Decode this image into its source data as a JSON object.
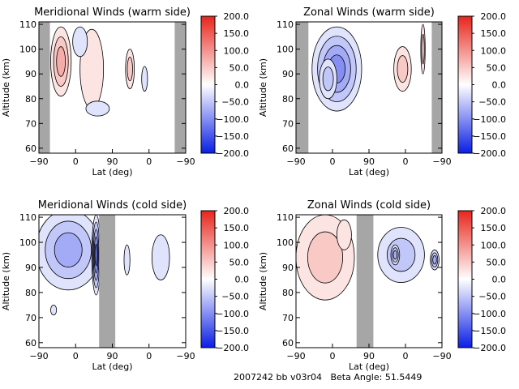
{
  "footer": "2007242 bb v03r04   Beta Angle: 51.5449",
  "colorbar": {
    "ticks": [
      "200.0",
      "150.0",
      "100.0",
      "50.0",
      "0.0",
      "−50.0",
      "−100.0",
      "−150.0",
      "−200.0"
    ],
    "range": [
      -200,
      200
    ],
    "colors": {
      "max": "#e8251c",
      "mid": "#ffffff",
      "min": "#0a1ee6"
    }
  },
  "chart_data": [
    {
      "type": "heatmap",
      "title": "Meridional Winds (warm side)",
      "xlabel": "Lat (deg)",
      "ylabel": "Altitude (km)",
      "xticks": [
        "−90",
        "0",
        "90",
        "0",
        "−90"
      ],
      "yticks": [
        "60",
        "70",
        "80",
        "90",
        "100",
        "110"
      ],
      "ylim": [
        58,
        111
      ],
      "gray_bands": [
        [
          0,
          0.075
        ],
        [
          0.925,
          1
        ]
      ],
      "blobs": [
        {
          "x": 0.15,
          "y": 95,
          "rx": 0.07,
          "ry": 14,
          "v": 75
        },
        {
          "x": 0.36,
          "y": 92,
          "rx": 0.08,
          "ry": 16,
          "v": 25
        },
        {
          "x": 0.28,
          "y": 103,
          "rx": 0.05,
          "ry": 6,
          "v": -30
        },
        {
          "x": 0.4,
          "y": 76,
          "rx": 0.08,
          "ry": 3,
          "v": -25
        },
        {
          "x": 0.62,
          "y": 92,
          "rx": 0.03,
          "ry": 8,
          "v": 60
        },
        {
          "x": 0.72,
          "y": 88,
          "rx": 0.02,
          "ry": 5,
          "v": -25
        }
      ]
    },
    {
      "type": "heatmap",
      "title": "Zonal Winds (warm side)",
      "xlabel": "Lat (deg)",
      "ylabel": "Altitude (km)",
      "xticks": [
        "−90",
        "0",
        "90",
        "0",
        "−90"
      ],
      "yticks": [
        "60",
        "70",
        "80",
        "90",
        "100",
        "110"
      ],
      "ylim": [
        58,
        111
      ],
      "gray_bands": [
        [
          0,
          0.085
        ],
        [
          0.93,
          1
        ]
      ],
      "blobs": [
        {
          "x": 0.28,
          "y": 92,
          "rx": 0.17,
          "ry": 17,
          "v": -110
        },
        {
          "x": 0.22,
          "y": 88,
          "rx": 0.06,
          "ry": 8,
          "v": -60
        },
        {
          "x": 0.73,
          "y": 92,
          "rx": 0.06,
          "ry": 9,
          "v": 70
        },
        {
          "x": 0.87,
          "y": 100,
          "rx": 0.015,
          "ry": 10,
          "v": 60
        }
      ]
    },
    {
      "type": "heatmap",
      "title": "Meridional Winds (cold side)",
      "xlabel": "Lat (deg)",
      "ylabel": "Altitude (km)",
      "xticks": [
        "−90",
        "0",
        "90",
        "0",
        "−90"
      ],
      "yticks": [
        "60",
        "70",
        "80",
        "90",
        "100",
        "110"
      ],
      "ylim": [
        58,
        111
      ],
      "gray_bands": [
        [
          0.41,
          0.52
        ]
      ],
      "blobs": [
        {
          "x": 0.2,
          "y": 97,
          "rx": 0.22,
          "ry": 16,
          "v": -85
        },
        {
          "x": 0.39,
          "y": 95,
          "rx": 0.03,
          "ry": 16,
          "v": -130
        },
        {
          "x": 0.6,
          "y": 93,
          "rx": 0.02,
          "ry": 6,
          "v": -25
        },
        {
          "x": 0.83,
          "y": 94,
          "rx": 0.06,
          "ry": 9,
          "v": -45
        },
        {
          "x": 0.1,
          "y": 73,
          "rx": 0.02,
          "ry": 2,
          "v": -25
        }
      ]
    },
    {
      "type": "heatmap",
      "title": "Zonal Winds (cold side)",
      "xlabel": "Lat (deg)",
      "ylabel": "Altitude (km)",
      "xticks": [
        "−90",
        "0",
        "90",
        "0",
        "−90"
      ],
      "yticks": [
        "60",
        "70",
        "80",
        "90",
        "100",
        "110"
      ],
      "ylim": [
        58,
        111
      ],
      "gray_bands": [
        [
          0.415,
          0.53
        ]
      ],
      "blobs": [
        {
          "x": 0.2,
          "y": 94,
          "rx": 0.2,
          "ry": 17,
          "v": 65
        },
        {
          "x": 0.33,
          "y": 103,
          "rx": 0.05,
          "ry": 6,
          "v": 45
        },
        {
          "x": 0.72,
          "y": 95,
          "rx": 0.16,
          "ry": 11,
          "v": -55
        },
        {
          "x": 0.68,
          "y": 95,
          "rx": 0.03,
          "ry": 4,
          "v": -90
        },
        {
          "x": 0.95,
          "y": 93,
          "rx": 0.03,
          "ry": 4,
          "v": -90
        }
      ]
    }
  ]
}
